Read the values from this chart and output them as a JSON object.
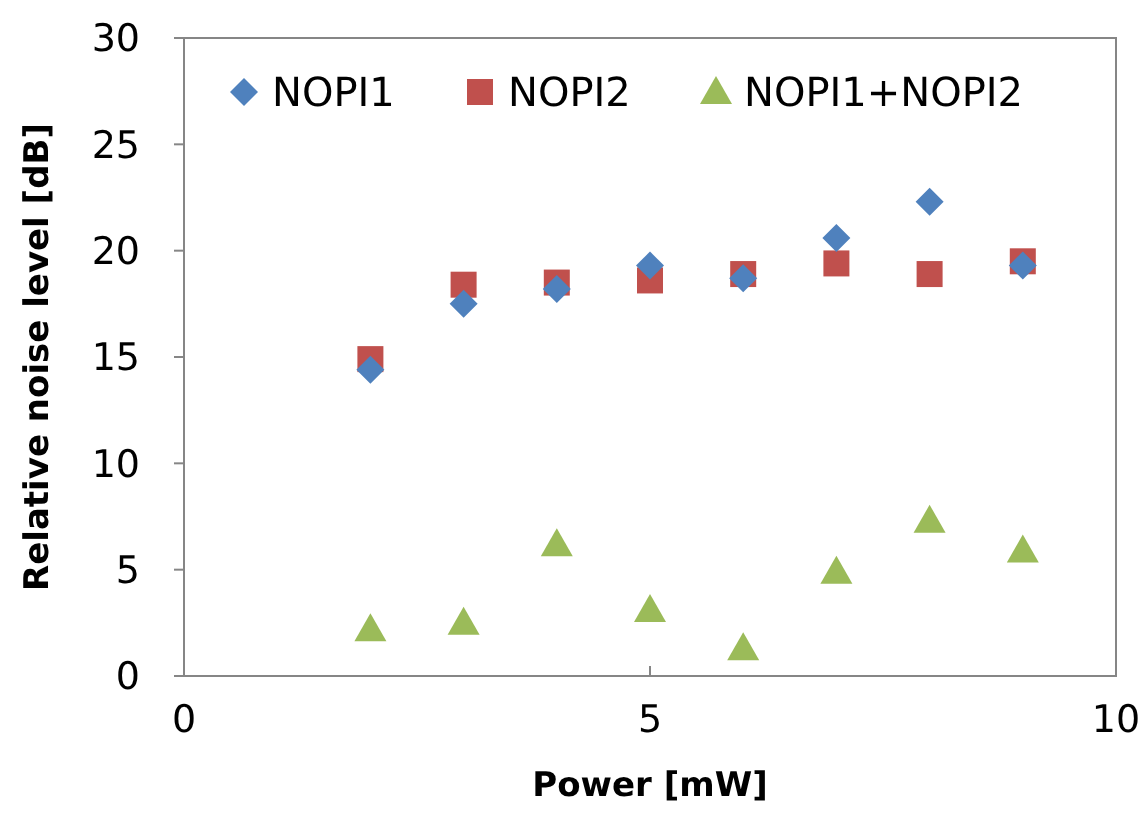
{
  "chart_data": {
    "type": "scatter",
    "xlabel": "Power [mW]",
    "ylabel": "Relative noise level [dB]",
    "x": [
      2,
      3,
      4,
      5,
      6,
      7,
      8,
      9
    ],
    "series": [
      {
        "name": "NOPI1",
        "color": "#4f81bd",
        "marker": "diamond",
        "values": [
          14.4,
          17.5,
          18.2,
          19.3,
          18.7,
          20.6,
          22.3,
          19.3
        ]
      },
      {
        "name": "NOPI2",
        "color": "#c0504d",
        "marker": "square",
        "values": [
          14.9,
          18.4,
          18.5,
          18.6,
          18.9,
          19.4,
          18.9,
          19.5
        ]
      },
      {
        "name": "NOPI1+NOPI2",
        "color": "#9bbb59",
        "marker": "triangle",
        "values": [
          2.2,
          2.5,
          6.2,
          3.1,
          1.3,
          4.9,
          7.3,
          5.9
        ]
      }
    ],
    "xlim": [
      0,
      10
    ],
    "xticks": [
      0,
      5,
      10
    ],
    "ylim": [
      0,
      30
    ],
    "yticks": [
      0,
      5,
      10,
      15,
      20,
      25,
      30
    ],
    "grid": false,
    "legend": "top"
  }
}
